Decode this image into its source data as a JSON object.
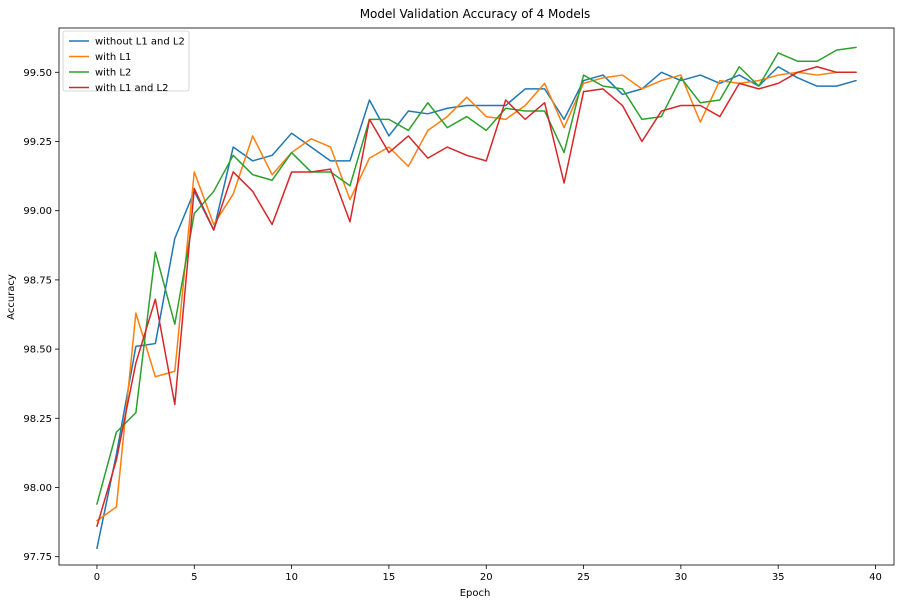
{
  "chart_data": {
    "type": "line",
    "title": "Model Validation Accuracy of 4 Models",
    "xlabel": "Epoch",
    "ylabel": "Accuracy",
    "xlim": [
      -1.95,
      40.95
    ],
    "ylim": [
      97.72,
      99.66
    ],
    "xticks": [
      0,
      5,
      10,
      15,
      20,
      25,
      30,
      35,
      40
    ],
    "yticks": [
      97.75,
      98.0,
      98.25,
      98.5,
      98.75,
      99.0,
      99.25,
      99.5
    ],
    "ytick_labels": [
      "97.75",
      "98.00",
      "98.25",
      "98.50",
      "98.75",
      "99.00",
      "99.25",
      "99.50"
    ],
    "grid": false,
    "legend_position": "top-left",
    "x": [
      0,
      1,
      2,
      3,
      4,
      5,
      6,
      7,
      8,
      9,
      10,
      11,
      12,
      13,
      14,
      15,
      16,
      17,
      18,
      19,
      20,
      21,
      22,
      23,
      24,
      25,
      26,
      27,
      28,
      29,
      30,
      31,
      32,
      33,
      34,
      35,
      36,
      37,
      38,
      39
    ],
    "series": [
      {
        "name": "without L1 and L2",
        "color": "#1f77b4",
        "values": [
          97.78,
          98.12,
          98.51,
          98.52,
          98.9,
          99.07,
          98.93,
          99.23,
          99.18,
          99.2,
          99.28,
          99.23,
          99.18,
          99.18,
          99.4,
          99.27,
          99.36,
          99.35,
          99.37,
          99.38,
          99.38,
          99.38,
          99.44,
          99.44,
          99.33,
          99.47,
          99.49,
          99.42,
          99.44,
          99.5,
          99.47,
          99.49,
          99.46,
          99.49,
          99.45,
          99.52,
          99.48,
          99.45,
          99.45,
          99.47
        ]
      },
      {
        "name": "with L1",
        "color": "#ff7f0e",
        "values": [
          97.88,
          97.93,
          98.63,
          98.4,
          98.42,
          99.14,
          98.95,
          99.06,
          99.27,
          99.13,
          99.21,
          99.26,
          99.23,
          99.04,
          99.19,
          99.23,
          99.16,
          99.29,
          99.34,
          99.41,
          99.34,
          99.33,
          99.38,
          99.46,
          99.3,
          99.46,
          99.48,
          99.49,
          99.44,
          99.47,
          99.49,
          99.32,
          99.47,
          99.46,
          99.47,
          99.49,
          99.5,
          99.49,
          99.5,
          99.5
        ]
      },
      {
        "name": "with L2",
        "color": "#2ca02c",
        "values": [
          97.94,
          98.2,
          98.27,
          98.85,
          98.59,
          98.99,
          99.07,
          99.2,
          99.13,
          99.11,
          99.21,
          99.14,
          99.14,
          99.09,
          99.33,
          99.33,
          99.29,
          99.39,
          99.3,
          99.34,
          99.29,
          99.37,
          99.36,
          99.36,
          99.21,
          99.49,
          99.45,
          99.44,
          99.33,
          99.34,
          99.48,
          99.39,
          99.4,
          99.52,
          99.45,
          99.57,
          99.54,
          99.54,
          99.58,
          99.59
        ]
      },
      {
        "name": "with L1 and L2",
        "color": "#d62728",
        "values": [
          97.86,
          98.1,
          98.45,
          98.68,
          98.3,
          99.08,
          98.93,
          99.14,
          99.07,
          98.95,
          99.14,
          99.14,
          99.15,
          98.96,
          99.33,
          99.21,
          99.27,
          99.19,
          99.23,
          99.2,
          99.18,
          99.4,
          99.33,
          99.39,
          99.1,
          99.43,
          99.44,
          99.38,
          99.25,
          99.36,
          99.38,
          99.38,
          99.34,
          99.46,
          99.44,
          99.46,
          99.5,
          99.52,
          99.5,
          99.5
        ]
      }
    ]
  }
}
